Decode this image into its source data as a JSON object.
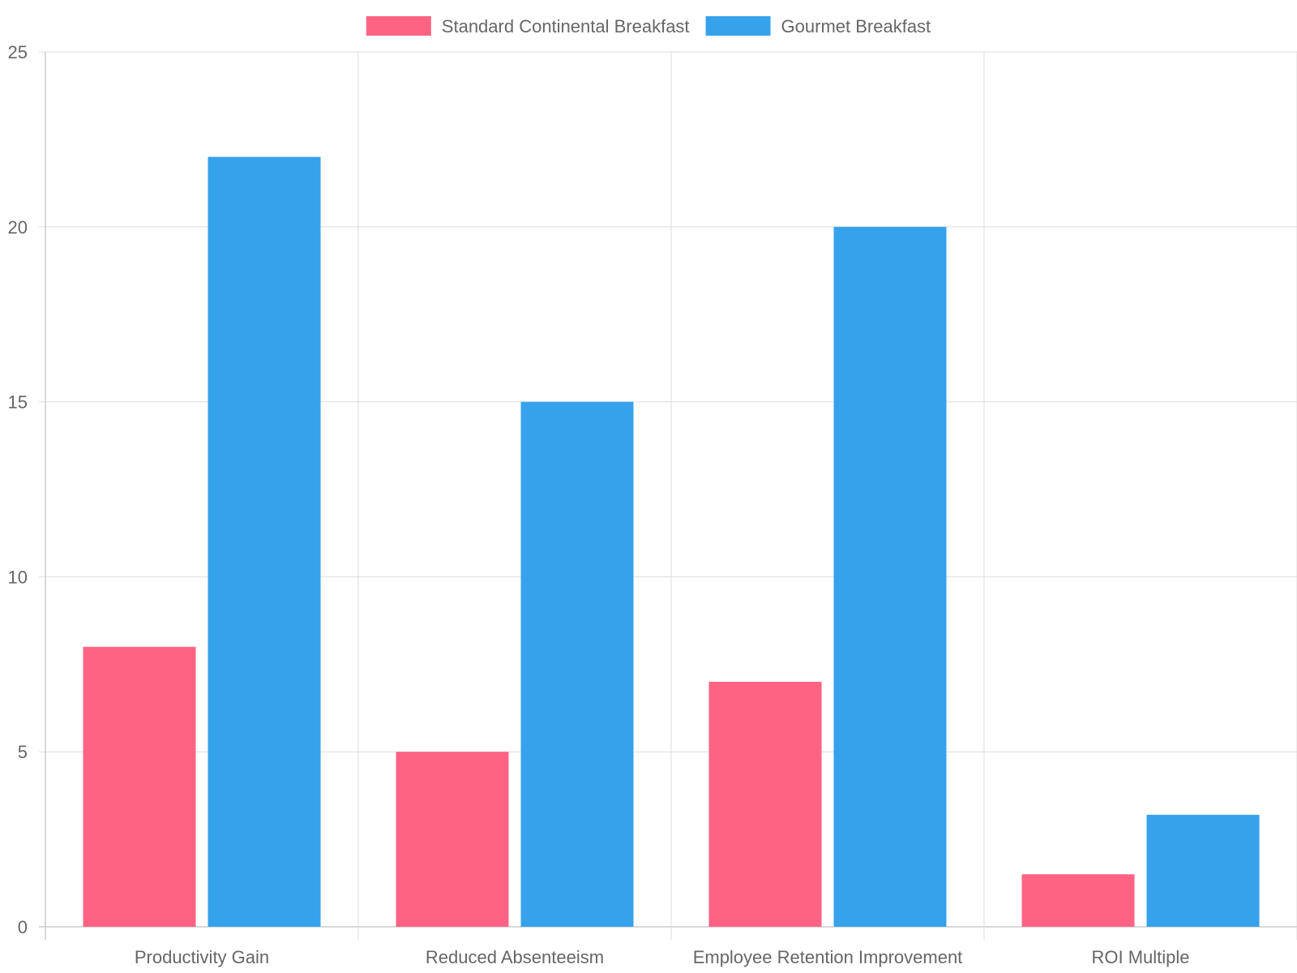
{
  "chart_data": {
    "type": "bar",
    "categories": [
      "Productivity Gain",
      "Reduced Absenteeism",
      "Employee Retention Improvement",
      "ROI Multiple"
    ],
    "series": [
      {
        "name": "Standard Continental Breakfast",
        "color": "#ff6384",
        "values": [
          8,
          5,
          7,
          1.5
        ]
      },
      {
        "name": "Gourmet Breakfast",
        "color": "#36a2eb",
        "values": [
          22,
          15,
          20,
          3.2
        ]
      }
    ],
    "title": "",
    "xlabel": "",
    "ylabel": "",
    "ylim": [
      0,
      25
    ],
    "yticks": [
      0,
      5,
      10,
      15,
      20,
      25
    ],
    "grid": true,
    "legend_position": "top-center"
  }
}
